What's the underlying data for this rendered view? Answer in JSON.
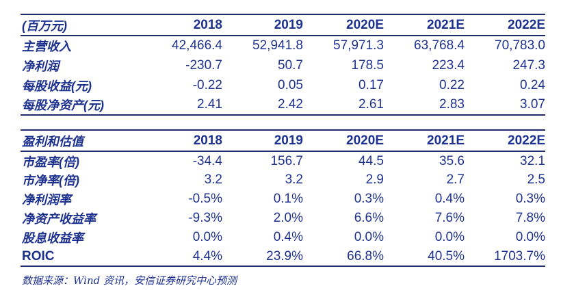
{
  "colors": {
    "text_navy": "#1d318f",
    "border_navy": "#1d2b6e",
    "background": "#ffffff"
  },
  "income_table": {
    "unit_header": "(百万元)",
    "columns": [
      "2018",
      "2019",
      "2020E",
      "2021E",
      "2022E"
    ],
    "rows": [
      {
        "label": "主营收入",
        "values": [
          "42,466.4",
          "52,941.8",
          "57,971.3",
          "63,768.4",
          "70,783.0"
        ]
      },
      {
        "label": "净利润",
        "values": [
          "-230.7",
          "50.7",
          "178.5",
          "223.4",
          "247.3"
        ]
      },
      {
        "label": "每股收益(元)",
        "values": [
          "-0.22",
          "0.05",
          "0.17",
          "0.22",
          "0.24"
        ]
      },
      {
        "label": "每股净资产(元)",
        "values": [
          "2.41",
          "2.42",
          "2.61",
          "2.83",
          "3.07"
        ]
      }
    ]
  },
  "valuation_table": {
    "title_header": "盈利和估值",
    "columns": [
      "2018",
      "2019",
      "2020E",
      "2021E",
      "2022E"
    ],
    "rows": [
      {
        "label": "市盈率(倍)",
        "values": [
          "-34.4",
          "156.7",
          "44.5",
          "35.6",
          "32.1"
        ]
      },
      {
        "label": "市净率(倍)",
        "values": [
          "3.2",
          "3.2",
          "2.9",
          "2.7",
          "2.5"
        ]
      },
      {
        "label": "净利润率",
        "values": [
          "-0.5%",
          "0.1%",
          "0.3%",
          "0.4%",
          "0.3%"
        ]
      },
      {
        "label": "净资产收益率",
        "values": [
          "-9.3%",
          "2.0%",
          "6.6%",
          "7.6%",
          "7.8%"
        ]
      },
      {
        "label": "股息收益率",
        "values": [
          "0.0%",
          "0.4%",
          "0.0%",
          "0.0%",
          "0.0%"
        ]
      },
      {
        "label": "ROIC",
        "values": [
          "4.4%",
          "23.9%",
          "66.8%",
          "40.5%",
          "1703.7%"
        ]
      }
    ]
  },
  "footnote": {
    "text": "数据来源：Wind 资讯，安信证券研究中心预测"
  }
}
